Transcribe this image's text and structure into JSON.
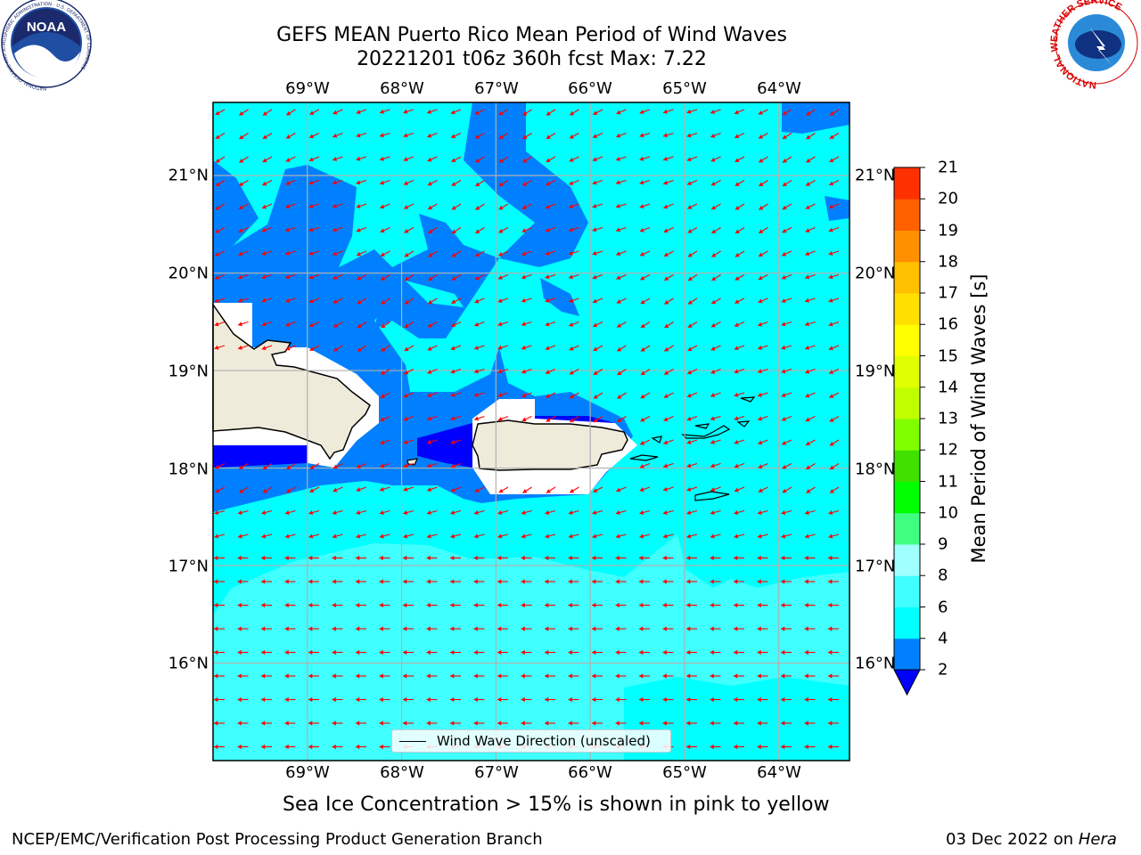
{
  "title": {
    "line1": "GEFS MEAN Puerto Rico Mean Period of Wind Waves",
    "line2": "20221201 t06z 360h fcst   Max: 7.22"
  },
  "map": {
    "lon_labels": [
      "69°W",
      "68°W",
      "67°W",
      "66°W",
      "65°W",
      "64°W"
    ],
    "lat_labels": [
      "21°N",
      "20°N",
      "19°N",
      "18°N",
      "17°N",
      "16°N"
    ],
    "lon_range": [
      -70.0,
      -63.25
    ],
    "lat_range": [
      15.0,
      21.75
    ],
    "grid": true,
    "arrow_color": "#ff0000",
    "land_color": "#efebdb",
    "legend": {
      "label": "Wind Wave Direction (unscaled)",
      "placement": "bottom-center"
    }
  },
  "colorbar": {
    "label": "Mean Period of Wind Waves [s]",
    "ticks": [
      "2",
      "4",
      "6",
      "8",
      "9",
      "10",
      "11",
      "12",
      "13",
      "14",
      "15",
      "16",
      "17",
      "18",
      "19",
      "20",
      "21"
    ],
    "colors": [
      "#0080ff",
      "#00ffff",
      "#40ffff",
      "#a0ffff",
      "#40ff80",
      "#00ff00",
      "#40e000",
      "#80ff00",
      "#c0ff00",
      "#e0ff00",
      "#ffff00",
      "#ffe000",
      "#ffc000",
      "#ff9000",
      "#ff6000",
      "#ff3000"
    ],
    "under_color": "#0000ff"
  },
  "subtitle": "Sea Ice Concentration > 15% is shown in pink to yellow",
  "footer": {
    "left": "NCEP/EMC/Verification Post Processing Product Generation Branch",
    "right_prefix": "03 Dec 2022 on ",
    "right_machine": "Hera"
  },
  "logos": {
    "noaa_text": "NOAA",
    "noaa_ring": "NATIONAL OCEANIC AND ATMOSPHERIC ADMINISTRATION · U.S. DEPARTMENT OF COMMERCE",
    "nws_ring": "NATIONAL WEATHER SERVICE"
  }
}
